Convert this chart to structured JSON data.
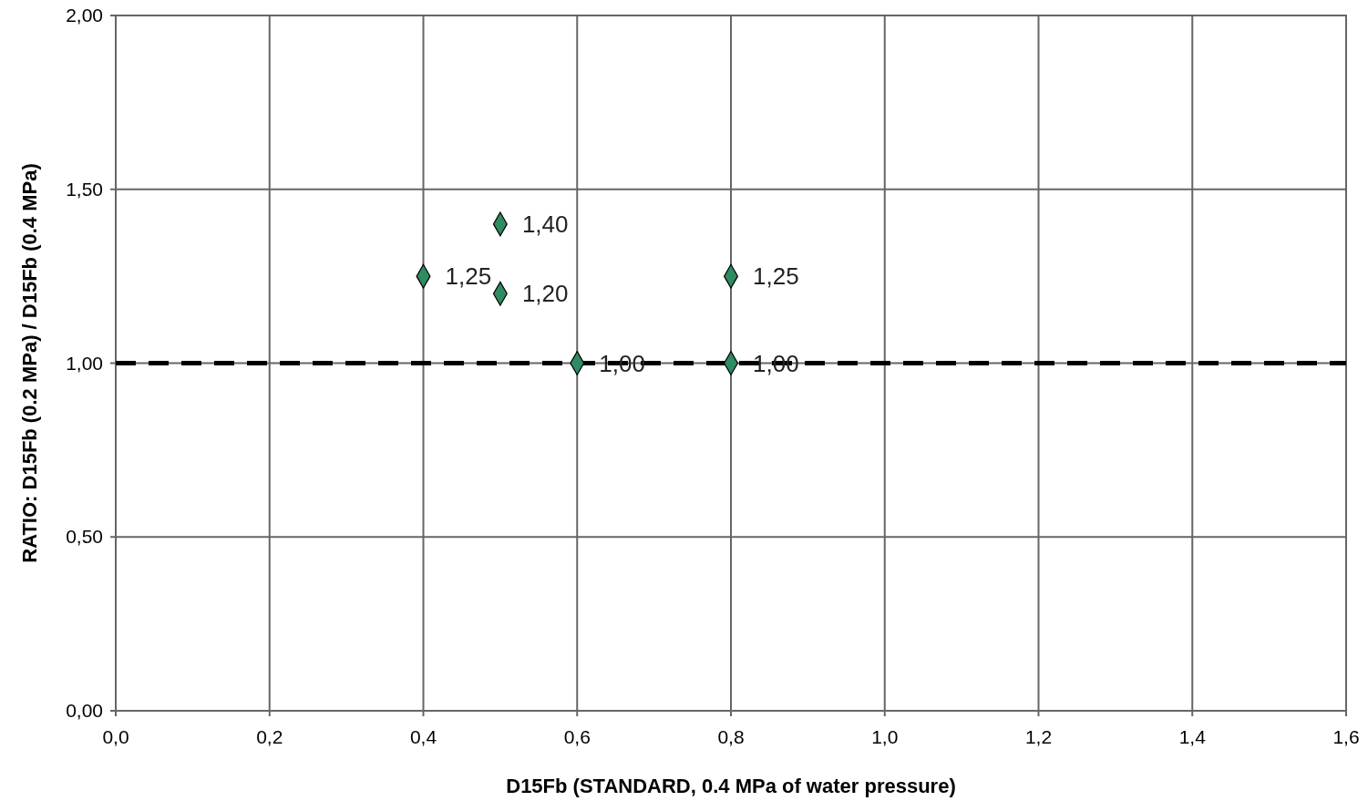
{
  "chart_data": {
    "type": "scatter",
    "xlabel": "D15Fb (STANDARD, 0.4 MPa of water pressure)",
    "ylabel": "RATIO: D15Fb (0.2 MPa) / D15Fb (0.4 MPa)",
    "x": [
      0.4,
      0.5,
      0.5,
      0.6,
      0.8,
      0.8
    ],
    "series": [
      {
        "color": "#2e8b62",
        "values": [
          1.25,
          1.4,
          1.2,
          1.0,
          1.25,
          1.0
        ],
        "value_labels": [
          "1,25",
          "1,40",
          "1,20",
          "1,00",
          "1,25",
          "1,00"
        ]
      }
    ],
    "xlim": [
      0,
      1.6
    ],
    "xticks": [
      {
        "value": 0,
        "label": "0,0"
      },
      {
        "value": 0.2,
        "label": "0,2"
      },
      {
        "value": 0.4,
        "label": "0,4"
      },
      {
        "value": 0.6,
        "label": "0,6"
      },
      {
        "value": 0.8,
        "label": "0,8"
      },
      {
        "value": 1.0,
        "label": "1,0"
      },
      {
        "value": 1.2,
        "label": "1,2"
      },
      {
        "value": 1.4,
        "label": "1,4"
      },
      {
        "value": 1.6,
        "label": "1,6"
      }
    ],
    "ylim": [
      0,
      2
    ],
    "yticks": [
      {
        "value": 0,
        "label": "0,00"
      },
      {
        "value": 0.5,
        "label": "0,50"
      },
      {
        "value": 1,
        "label": "1,00"
      },
      {
        "value": 1.5,
        "label": "1,50"
      },
      {
        "value": 2,
        "label": "2,00"
      }
    ],
    "ref_lines": [
      {
        "axis": "y",
        "value": 1,
        "color": "#000000",
        "line_style": "dashed"
      }
    ],
    "grid": true,
    "marker": "diamond"
  }
}
